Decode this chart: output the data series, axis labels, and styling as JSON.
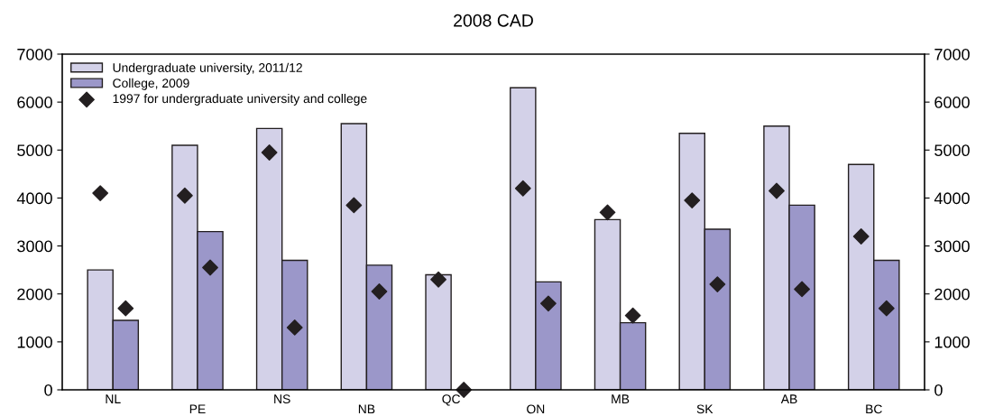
{
  "chart_data": {
    "type": "bar",
    "title": "2008 CAD",
    "categories": [
      "NL",
      "PE",
      "NS",
      "NB",
      "QC",
      "ON",
      "MB",
      "SK",
      "AB",
      "BC"
    ],
    "series": [
      {
        "name": "Undergraduate university, 2011/12",
        "color": "#d3d1e8",
        "values": [
          2500,
          5100,
          5450,
          5550,
          2400,
          6300,
          3550,
          5350,
          5500,
          4700
        ]
      },
      {
        "name": "College, 2009",
        "color": "#9b97c9",
        "values": [
          1450,
          3300,
          2700,
          2600,
          null,
          2250,
          1400,
          3350,
          3850,
          2700
        ]
      },
      {
        "name": "1997 for undergraduate university and college",
        "type": "scatter",
        "marker": "diamond",
        "color": "#231f20",
        "x": [
          "NL",
          "PE",
          "NS",
          "NB",
          "QC",
          "ON",
          "MB",
          "SK",
          "AB",
          "BC"
        ],
        "values": [
          4100,
          4050,
          4950,
          3850,
          2300,
          4200,
          3700,
          3950,
          4150,
          3200
        ]
      },
      {
        "type": "scatter",
        "marker": "diamond",
        "color": "#231f20",
        "x": [
          "NL",
          "PE",
          "NS",
          "NB",
          "QC",
          "ON",
          "MB",
          "SK",
          "AB",
          "BC"
        ],
        "values": [
          1700,
          2550,
          1300,
          2050,
          0,
          1800,
          1550,
          2200,
          2100,
          1700
        ]
      }
    ],
    "ylim": [
      0,
      7000
    ],
    "yticks": [
      0,
      1000,
      2000,
      3000,
      4000,
      5000,
      6000,
      7000
    ],
    "y2lim": [
      0,
      7000
    ],
    "y2ticks": [
      0,
      1000,
      2000,
      3000,
      4000,
      5000,
      6000,
      7000
    ],
    "grid": false,
    "legend": "top left"
  }
}
